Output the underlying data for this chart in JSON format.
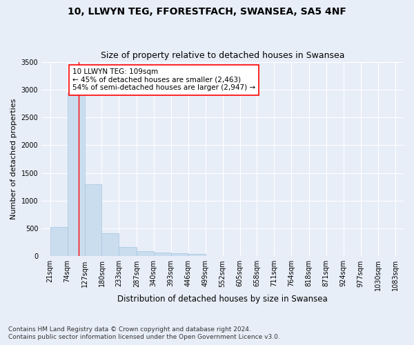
{
  "title1": "10, LLWYN TEG, FFORESTFACH, SWANSEA, SA5 4NF",
  "title2": "Size of property relative to detached houses in Swansea",
  "xlabel": "Distribution of detached houses by size in Swansea",
  "ylabel": "Number of detached properties",
  "footnote1": "Contains HM Land Registry data © Crown copyright and database right 2024.",
  "footnote2": "Contains public sector information licensed under the Open Government Licence v3.0.",
  "annotation_line1": "10 LLWYN TEG: 109sqm",
  "annotation_line2": "← 45% of detached houses are smaller (2,463)",
  "annotation_line3": "54% of semi-detached houses are larger (2,947) →",
  "bar_color": "#c9ddef",
  "bar_edge_color": "#a8c4de",
  "red_line_x": 109,
  "bins": [
    21,
    74,
    127,
    180,
    233,
    287,
    340,
    393,
    446,
    499,
    552,
    605,
    658,
    711,
    764,
    818,
    871,
    924,
    977,
    1030,
    1083
  ],
  "bar_heights": [
    530,
    2950,
    1300,
    420,
    170,
    90,
    65,
    55,
    45,
    0,
    0,
    0,
    0,
    0,
    0,
    0,
    0,
    0,
    0,
    0
  ],
  "ylim": [
    0,
    3500
  ],
  "yticks": [
    0,
    500,
    1000,
    1500,
    2000,
    2500,
    3000,
    3500
  ],
  "background_color": "#e8eef8",
  "axes_background": "#e8eef8",
  "grid_color": "#ffffff",
  "title1_fontsize": 10,
  "title2_fontsize": 9,
  "annotation_fontsize": 7.5,
  "xlabel_fontsize": 8.5,
  "ylabel_fontsize": 8,
  "footnote_fontsize": 6.5,
  "tick_fontsize": 7
}
